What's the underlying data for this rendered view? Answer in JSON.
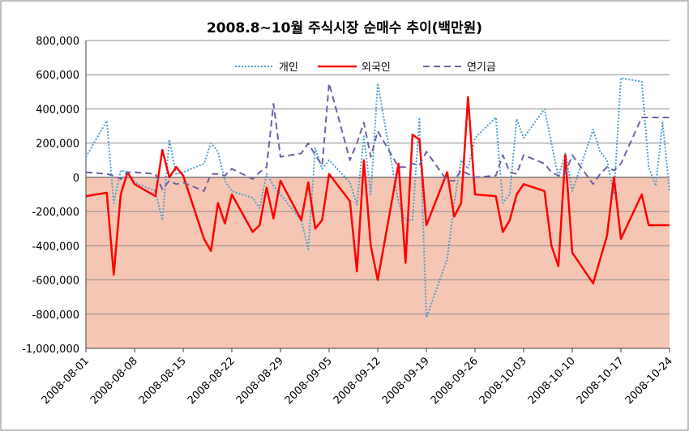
{
  "chart_data": {
    "type": "line",
    "title": "2008.8~10월 주식시장 순매수 추이(백만원)",
    "xlabel": "",
    "ylabel": "",
    "ylim": [
      -1000000,
      800000
    ],
    "y_ticks": [
      800000,
      600000,
      400000,
      200000,
      0,
      -200000,
      -400000,
      -600000,
      -800000,
      -1000000
    ],
    "y_tick_labels": [
      "800,000",
      "600,000",
      "400,000",
      "200,000",
      "0",
      "-200,000",
      "-400,000",
      "-600,000",
      "-800,000",
      "-1,000,000"
    ],
    "x_tick_labels": [
      "2008-08-01",
      "2008-08-08",
      "2008-08-15",
      "2008-08-22",
      "2008-08-29",
      "2008-09-05",
      "2008-09-12",
      "2008-09-19",
      "2008-09-26",
      "2008-10-03",
      "2008-10-10",
      "2008-10-17",
      "2008-10-24"
    ],
    "grid": true,
    "legend_position": "top-right",
    "negative_region_fill": "#f6c6b4",
    "series": [
      {
        "name": "개인",
        "color": "#4f9fcd",
        "dash": "dotted",
        "x": [
          "2008-08-01",
          "2008-08-04",
          "2008-08-05",
          "2008-08-06",
          "2008-08-07",
          "2008-08-08",
          "2008-08-11",
          "2008-08-12",
          "2008-08-13",
          "2008-08-14",
          "2008-08-15",
          "2008-08-18",
          "2008-08-19",
          "2008-08-20",
          "2008-08-21",
          "2008-08-22",
          "2008-08-25",
          "2008-08-26",
          "2008-08-27",
          "2008-08-28",
          "2008-08-29",
          "2008-09-01",
          "2008-09-02",
          "2008-09-03",
          "2008-09-04",
          "2008-09-05",
          "2008-09-08",
          "2008-09-09",
          "2008-09-10",
          "2008-09-11",
          "2008-09-12",
          "2008-09-15",
          "2008-09-16",
          "2008-09-17",
          "2008-09-18",
          "2008-09-19",
          "2008-09-22",
          "2008-09-23",
          "2008-09-24",
          "2008-09-25",
          "2008-09-26",
          "2008-09-29",
          "2008-09-30",
          "2008-10-01",
          "2008-10-02",
          "2008-10-03",
          "2008-10-06",
          "2008-10-07",
          "2008-10-08",
          "2008-10-09",
          "2008-10-10",
          "2008-10-13",
          "2008-10-14",
          "2008-10-15",
          "2008-10-16",
          "2008-10-17",
          "2008-10-20",
          "2008-10-21",
          "2008-10-22",
          "2008-10-23",
          "2008-10-24"
        ],
        "values": [
          120000,
          330000,
          -150000,
          40000,
          30000,
          -30000,
          -80000,
          -250000,
          220000,
          20000,
          30000,
          80000,
          200000,
          150000,
          -20000,
          -80000,
          -120000,
          -180000,
          20000,
          -50000,
          -100000,
          -250000,
          -420000,
          170000,
          50000,
          100000,
          -30000,
          -160000,
          240000,
          -100000,
          550000,
          -150000,
          -250000,
          -250000,
          350000,
          -820000,
          -480000,
          -150000,
          100000,
          50000,
          230000,
          350000,
          -150000,
          -100000,
          340000,
          230000,
          400000,
          200000,
          0,
          140000,
          -80000,
          280000,
          150000,
          100000,
          -100000,
          580000,
          560000,
          60000,
          -50000,
          320000,
          -80000
        ]
      },
      {
        "name": "외국인",
        "color": "#ff0000",
        "dash": "solid",
        "x": [
          "2008-08-01",
          "2008-08-04",
          "2008-08-05",
          "2008-08-06",
          "2008-08-07",
          "2008-08-08",
          "2008-08-11",
          "2008-08-12",
          "2008-08-13",
          "2008-08-14",
          "2008-08-15",
          "2008-08-18",
          "2008-08-19",
          "2008-08-20",
          "2008-08-21",
          "2008-08-22",
          "2008-08-25",
          "2008-08-26",
          "2008-08-27",
          "2008-08-28",
          "2008-08-29",
          "2008-09-01",
          "2008-09-02",
          "2008-09-03",
          "2008-09-04",
          "2008-09-05",
          "2008-09-08",
          "2008-09-09",
          "2008-09-10",
          "2008-09-11",
          "2008-09-12",
          "2008-09-15",
          "2008-09-16",
          "2008-09-17",
          "2008-09-18",
          "2008-09-19",
          "2008-09-22",
          "2008-09-23",
          "2008-09-24",
          "2008-09-25",
          "2008-09-26",
          "2008-09-29",
          "2008-09-30",
          "2008-10-01",
          "2008-10-02",
          "2008-10-03",
          "2008-10-06",
          "2008-10-07",
          "2008-10-08",
          "2008-10-09",
          "2008-10-10",
          "2008-10-13",
          "2008-10-14",
          "2008-10-15",
          "2008-10-16",
          "2008-10-17",
          "2008-10-20",
          "2008-10-21",
          "2008-10-22",
          "2008-10-23",
          "2008-10-24"
        ],
        "values": [
          -110000,
          -90000,
          -570000,
          -100000,
          30000,
          -40000,
          -110000,
          160000,
          0,
          60000,
          10000,
          -360000,
          -430000,
          -150000,
          -270000,
          -100000,
          -320000,
          -280000,
          -60000,
          -240000,
          -20000,
          -250000,
          -30000,
          -300000,
          -250000,
          20000,
          -140000,
          -550000,
          100000,
          -400000,
          -600000,
          80000,
          -500000,
          250000,
          220000,
          -280000,
          30000,
          -230000,
          -150000,
          470000,
          -100000,
          -110000,
          -320000,
          -250000,
          -100000,
          -40000,
          -80000,
          -400000,
          -520000,
          130000,
          -440000,
          -620000,
          -480000,
          -340000,
          0,
          -360000,
          -100000,
          -280000,
          -280000,
          -280000,
          -280000
        ]
      },
      {
        "name": "연기금",
        "color": "#7060a8",
        "dash": "dashed",
        "x": [
          "2008-08-01",
          "2008-08-04",
          "2008-08-05",
          "2008-08-06",
          "2008-08-07",
          "2008-08-08",
          "2008-08-11",
          "2008-08-12",
          "2008-08-13",
          "2008-08-14",
          "2008-08-15",
          "2008-08-18",
          "2008-08-19",
          "2008-08-20",
          "2008-08-21",
          "2008-08-22",
          "2008-08-25",
          "2008-08-26",
          "2008-08-27",
          "2008-08-28",
          "2008-08-29",
          "2008-09-01",
          "2008-09-02",
          "2008-09-03",
          "2008-09-04",
          "2008-09-05",
          "2008-09-08",
          "2008-09-09",
          "2008-09-10",
          "2008-09-11",
          "2008-09-12",
          "2008-09-15",
          "2008-09-16",
          "2008-09-17",
          "2008-09-18",
          "2008-09-19",
          "2008-09-22",
          "2008-09-23",
          "2008-09-24",
          "2008-09-25",
          "2008-09-26",
          "2008-09-29",
          "2008-09-30",
          "2008-10-01",
          "2008-10-02",
          "2008-10-03",
          "2008-10-06",
          "2008-10-07",
          "2008-10-08",
          "2008-10-09",
          "2008-10-10",
          "2008-10-13",
          "2008-10-14",
          "2008-10-15",
          "2008-10-16",
          "2008-10-17",
          "2008-10-20",
          "2008-10-21",
          "2008-10-22",
          "2008-10-23",
          "2008-10-24"
        ],
        "values": [
          30000,
          20000,
          10000,
          -10000,
          30000,
          30000,
          20000,
          -70000,
          -20000,
          -40000,
          -30000,
          -80000,
          20000,
          20000,
          10000,
          50000,
          -10000,
          30000,
          60000,
          430000,
          120000,
          140000,
          200000,
          130000,
          70000,
          550000,
          100000,
          200000,
          320000,
          120000,
          270000,
          60000,
          60000,
          80000,
          70000,
          150000,
          -20000,
          -20000,
          40000,
          20000,
          0,
          10000,
          130000,
          30000,
          20000,
          130000,
          80000,
          30000,
          10000,
          20000,
          130000,
          -40000,
          20000,
          60000,
          40000,
          80000,
          350000,
          350000,
          350000,
          350000,
          350000
        ]
      }
    ]
  }
}
